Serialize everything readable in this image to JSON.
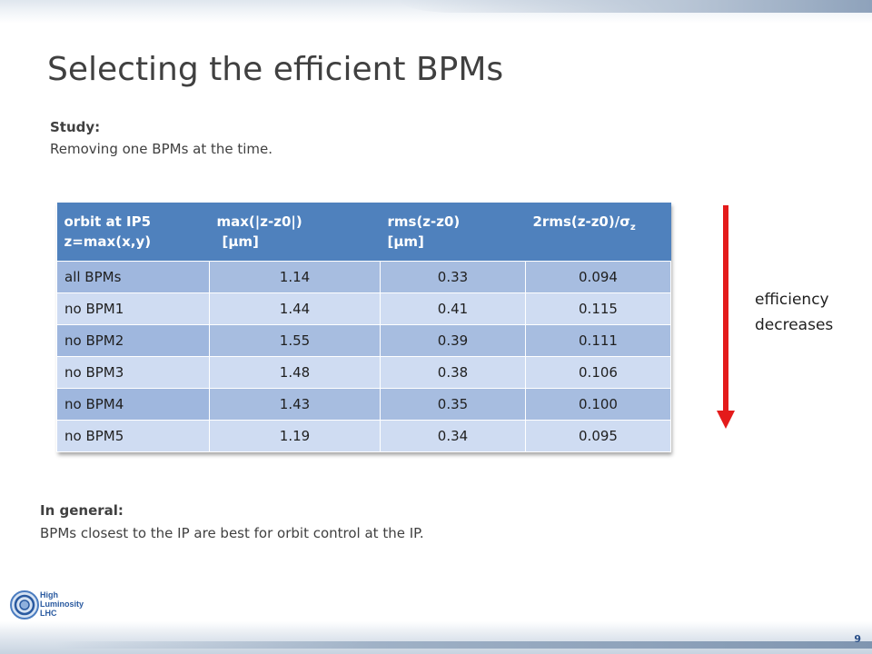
{
  "slide": {
    "title": "Selecting the efficient BPMs",
    "study_label": "Study:",
    "study_text": "Removing one BPMs at the time.",
    "general_label": "In general:",
    "general_text": "BPMs closest to the IP are best for orbit control at the IP.",
    "side_note_line1": "efficiency",
    "side_note_line2": "decreases",
    "page_number": "9"
  },
  "logo": {
    "line1": "High",
    "line2": "Luminosity",
    "line3": "LHC",
    "icon": "hl-lhc-logo-icon"
  },
  "table": {
    "headers": [
      {
        "line1": "orbit at IP5",
        "line2": "z=max(x,y)"
      },
      {
        "line1": "max(|z-z0|)",
        "line2": "[μm]"
      },
      {
        "line1": "rms(z-z0)",
        "line2": "[μm]"
      },
      {
        "line1": "2rms(z-z0)/σ",
        "sub": "z"
      }
    ],
    "rows": [
      [
        "all BPMs",
        "1.14",
        "0.33",
        "0.094"
      ],
      [
        "no BPM1",
        "1.44",
        "0.41",
        "0.115"
      ],
      [
        "no BPM2",
        "1.55",
        "0.39",
        "0.111"
      ],
      [
        "no BPM3",
        "1.48",
        "0.38",
        "0.106"
      ],
      [
        "no BPM4",
        "1.43",
        "0.35",
        "0.100"
      ],
      [
        "no BPM5",
        "1.19",
        "0.34",
        "0.095"
      ]
    ]
  },
  "colors": {
    "header": "#4f81bd",
    "row_dark": "#a7bde0",
    "row_light": "#cfdcf2",
    "arrow": "#e41b1b"
  },
  "arrow_icon": "down-arrow-icon"
}
